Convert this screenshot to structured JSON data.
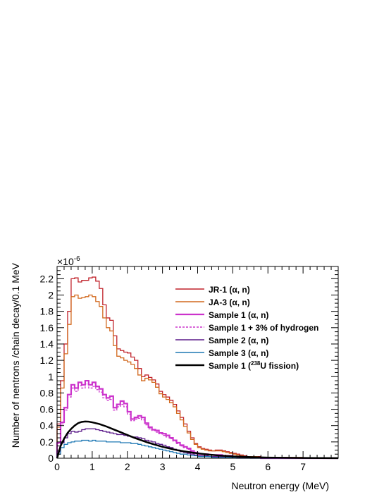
{
  "chart_data": {
    "type": "line",
    "xlabel": "Neutron energy (MeV)",
    "ylabel": "Number of nentrons /chain decay/0.1 MeV",
    "y_multiplier": "×10",
    "y_multiplier_exp": "-6",
    "xlim": [
      0,
      8
    ],
    "ylim": [
      0,
      2.35
    ],
    "x_ticks": [
      "0",
      "1",
      "2",
      "3",
      "4",
      "5",
      "6",
      "7"
    ],
    "y_ticks": [
      "0",
      "0.2",
      "0.4",
      "0.6",
      "0.8",
      "1",
      "1.2",
      "1.4",
      "1.6",
      "1.8",
      "2",
      "2.2"
    ],
    "grid": false,
    "legend_position": "top-right",
    "bin_width": 0.1,
    "series": [
      {
        "name": "JR-1 (α, n)",
        "color": "#c0222a",
        "style": "step",
        "values": [
          0.42,
          0.95,
          1.4,
          1.8,
          2.2,
          2.21,
          2.16,
          2.18,
          2.18,
          2.21,
          2.22,
          2.17,
          2.08,
          1.88,
          1.72,
          1.69,
          1.5,
          1.34,
          1.32,
          1.3,
          1.29,
          1.24,
          1.2,
          1.1,
          1.0,
          1.02,
          0.99,
          0.96,
          0.91,
          0.82,
          0.78,
          0.75,
          0.71,
          0.66,
          0.58,
          0.5,
          0.42,
          0.33,
          0.25,
          0.18,
          0.14,
          0.12,
          0.11,
          0.1,
          0.09,
          0.1,
          0.1,
          0.09,
          0.08,
          0.07,
          0.06,
          0.05,
          0.04,
          0.03,
          0.02,
          0.02,
          0.02,
          0.02,
          0.01,
          0.01,
          0.01,
          0.01,
          0.01,
          0.01,
          0.01,
          0.01,
          0.01,
          0.01,
          0.01,
          0.01,
          0.0,
          0.0,
          0.0,
          0.0,
          0.0,
          0.0,
          0.0,
          0.0,
          0.0,
          0.0
        ]
      },
      {
        "name": "JA-3 (α, n)",
        "color": "#d2691e",
        "style": "step",
        "values": [
          0.38,
          0.86,
          1.28,
          1.64,
          1.98,
          2.0,
          1.96,
          1.97,
          1.98,
          2.0,
          1.98,
          1.92,
          1.86,
          1.72,
          1.6,
          1.56,
          1.38,
          1.25,
          1.23,
          1.2,
          1.18,
          1.15,
          1.1,
          1.02,
          0.95,
          0.98,
          0.96,
          0.93,
          0.87,
          0.79,
          0.75,
          0.72,
          0.68,
          0.63,
          0.55,
          0.47,
          0.39,
          0.31,
          0.23,
          0.17,
          0.13,
          0.11,
          0.1,
          0.09,
          0.09,
          0.09,
          0.09,
          0.08,
          0.07,
          0.06,
          0.05,
          0.04,
          0.03,
          0.02,
          0.02,
          0.02,
          0.02,
          0.01,
          0.01,
          0.01,
          0.01,
          0.01,
          0.01,
          0.01,
          0.01,
          0.01,
          0.01,
          0.01,
          0.01,
          0.01,
          0.0,
          0.0,
          0.0,
          0.0,
          0.0,
          0.0,
          0.0,
          0.0,
          0.0,
          0.0
        ]
      },
      {
        "name": "Sample 1 (α, n)",
        "color": "#cc33cc",
        "style": "step-thick",
        "values": [
          0.19,
          0.44,
          0.62,
          0.78,
          0.9,
          0.86,
          0.93,
          0.9,
          0.95,
          0.9,
          0.93,
          0.88,
          0.85,
          0.78,
          0.74,
          0.76,
          0.62,
          0.66,
          0.7,
          0.67,
          0.57,
          0.48,
          0.5,
          0.52,
          0.5,
          0.43,
          0.38,
          0.35,
          0.34,
          0.31,
          0.3,
          0.28,
          0.25,
          0.22,
          0.19,
          0.16,
          0.14,
          0.12,
          0.09,
          0.07,
          0.05,
          0.05,
          0.05,
          0.04,
          0.04,
          0.04,
          0.04,
          0.03,
          0.03,
          0.03,
          0.02,
          0.02,
          0.01,
          0.01,
          0.01,
          0.01,
          0.01,
          0.01,
          0.0,
          0.0,
          0.0,
          0.0,
          0.0,
          0.0,
          0.0,
          0.0,
          0.0,
          0.0,
          0.0,
          0.0,
          0.0,
          0.0,
          0.0,
          0.0,
          0.0,
          0.0,
          0.0,
          0.0,
          0.0,
          0.0
        ]
      },
      {
        "name": "Sample 1 + 3% of hydrogen",
        "color": "#cc33cc",
        "style": "step-dashed",
        "values": [
          0.18,
          0.42,
          0.59,
          0.75,
          0.86,
          0.82,
          0.89,
          0.86,
          0.91,
          0.86,
          0.88,
          0.84,
          0.81,
          0.74,
          0.71,
          0.72,
          0.59,
          0.63,
          0.66,
          0.63,
          0.54,
          0.46,
          0.48,
          0.49,
          0.47,
          0.41,
          0.36,
          0.34,
          0.32,
          0.3,
          0.28,
          0.26,
          0.24,
          0.21,
          0.18,
          0.15,
          0.13,
          0.11,
          0.08,
          0.06,
          0.05,
          0.05,
          0.04,
          0.04,
          0.04,
          0.04,
          0.04,
          0.03,
          0.03,
          0.02,
          0.02,
          0.02,
          0.01,
          0.01,
          0.01,
          0.01,
          0.01,
          0.01,
          0.0,
          0.0,
          0.0,
          0.0,
          0.0,
          0.0,
          0.0,
          0.0,
          0.0,
          0.0,
          0.0,
          0.0,
          0.0,
          0.0,
          0.0,
          0.0,
          0.0,
          0.0,
          0.0,
          0.0,
          0.0,
          0.0
        ]
      },
      {
        "name": "Sample 2 (α, n)",
        "color": "#5b1a8a",
        "style": "step",
        "values": [
          0.08,
          0.19,
          0.25,
          0.3,
          0.33,
          0.32,
          0.33,
          0.35,
          0.36,
          0.36,
          0.36,
          0.35,
          0.34,
          0.33,
          0.32,
          0.31,
          0.3,
          0.29,
          0.29,
          0.28,
          0.27,
          0.26,
          0.26,
          0.25,
          0.24,
          0.22,
          0.21,
          0.2,
          0.18,
          0.17,
          0.16,
          0.14,
          0.13,
          0.11,
          0.1,
          0.08,
          0.07,
          0.06,
          0.05,
          0.04,
          0.03,
          0.03,
          0.03,
          0.02,
          0.02,
          0.02,
          0.02,
          0.02,
          0.02,
          0.01,
          0.01,
          0.01,
          0.01,
          0.01,
          0.01,
          0.0,
          0.0,
          0.0,
          0.0,
          0.0,
          0.0,
          0.0,
          0.0,
          0.0,
          0.0,
          0.0,
          0.0,
          0.0,
          0.0,
          0.0,
          0.0,
          0.0,
          0.0,
          0.0,
          0.0,
          0.0,
          0.0,
          0.0,
          0.0,
          0.0
        ]
      },
      {
        "name": "Sample 3 (α, n)",
        "color": "#1f78b4",
        "style": "step",
        "values": [
          0.05,
          0.13,
          0.17,
          0.19,
          0.2,
          0.21,
          0.21,
          0.22,
          0.22,
          0.21,
          0.22,
          0.21,
          0.21,
          0.21,
          0.2,
          0.2,
          0.2,
          0.2,
          0.19,
          0.19,
          0.19,
          0.18,
          0.18,
          0.17,
          0.16,
          0.15,
          0.14,
          0.13,
          0.12,
          0.11,
          0.1,
          0.09,
          0.08,
          0.07,
          0.06,
          0.05,
          0.05,
          0.04,
          0.03,
          0.03,
          0.02,
          0.02,
          0.02,
          0.02,
          0.01,
          0.01,
          0.01,
          0.01,
          0.01,
          0.01,
          0.01,
          0.0,
          0.0,
          0.0,
          0.0,
          0.0,
          0.0,
          0.0,
          0.0,
          0.0,
          0.0,
          0.0,
          0.0,
          0.0,
          0.0,
          0.0,
          0.0,
          0.0,
          0.0,
          0.0,
          0.0,
          0.0,
          0.0,
          0.0,
          0.0,
          0.0,
          0.0,
          0.0,
          0.0,
          0.0
        ]
      },
      {
        "name": "Sample 1 (²³⁸U fission)",
        "legend_parts": [
          "Sample 1 (",
          "238",
          "U fission)"
        ],
        "color": "#000000",
        "style": "smooth",
        "x": [
          0,
          0.1,
          0.2,
          0.3,
          0.4,
          0.5,
          0.6,
          0.7,
          0.8,
          0.9,
          1.0,
          1.2,
          1.4,
          1.6,
          1.8,
          2.0,
          2.2,
          2.4,
          2.6,
          2.8,
          3.0,
          3.2,
          3.4,
          3.6,
          3.8,
          4.0,
          4.3,
          4.6,
          5.0,
          5.5,
          6.0,
          6.5,
          7.0,
          7.5,
          8.0
        ],
        "values": [
          0.0,
          0.15,
          0.24,
          0.31,
          0.36,
          0.4,
          0.43,
          0.445,
          0.45,
          0.448,
          0.44,
          0.42,
          0.39,
          0.355,
          0.32,
          0.285,
          0.25,
          0.22,
          0.19,
          0.165,
          0.14,
          0.12,
          0.1,
          0.085,
          0.072,
          0.06,
          0.045,
          0.034,
          0.023,
          0.014,
          0.008,
          0.005,
          0.003,
          0.002,
          0.001
        ]
      }
    ]
  }
}
